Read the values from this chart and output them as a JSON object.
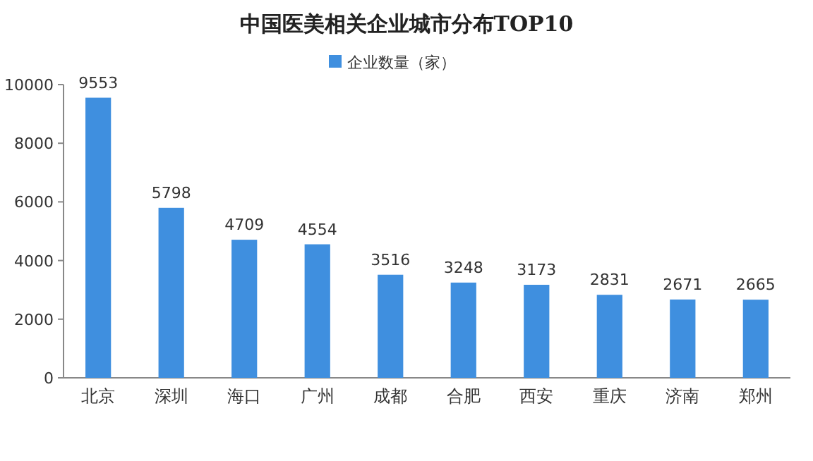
{
  "chart_data": {
    "type": "bar",
    "title": "中国医美相关企业城市分布TOP10",
    "categories": [
      "北京",
      "深圳",
      "海口",
      "广州",
      "成都",
      "合肥",
      "西安",
      "重庆",
      "济南",
      "郑州"
    ],
    "series": [
      {
        "name": "企业数量（家）",
        "color": "#3f8fdf",
        "values": [
          9553,
          5798,
          4709,
          4554,
          3516,
          3248,
          3173,
          2831,
          2671,
          2665
        ]
      }
    ],
    "ylim": [
      0,
      10000
    ],
    "yticks": [
      0,
      2000,
      4000,
      6000,
      8000,
      10000
    ],
    "data_labels": true,
    "legend": "top",
    "grid": false
  }
}
